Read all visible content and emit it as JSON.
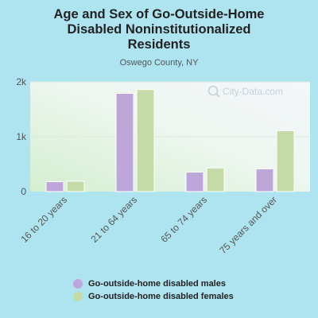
{
  "chart_data": {
    "type": "bar",
    "title_lines": [
      "Age and Sex of Go-Outside-Home",
      "Disabled Noninstitutionalized",
      "Residents"
    ],
    "subtitle": "Oswego County, NY",
    "categories": [
      "16 to 20 years",
      "21 to 64 years",
      "65 to 74 years",
      "75 years and over"
    ],
    "series": [
      {
        "name": "Go-outside-home disabled males",
        "color": "#bca6da",
        "values": [
          180,
          1790,
          355,
          415
        ]
      },
      {
        "name": "Go-outside-home disabled females",
        "color": "#c4dba8",
        "values": [
          190,
          1860,
          430,
          1110
        ]
      }
    ],
    "yticks": [
      {
        "value": 0,
        "label": "0"
      },
      {
        "value": 1000,
        "label": "1k"
      },
      {
        "value": 2000,
        "label": "2k"
      }
    ],
    "ylim": [
      0,
      2000
    ],
    "grid": true,
    "legend_position": "bottom",
    "watermark": "City-Data.com"
  }
}
